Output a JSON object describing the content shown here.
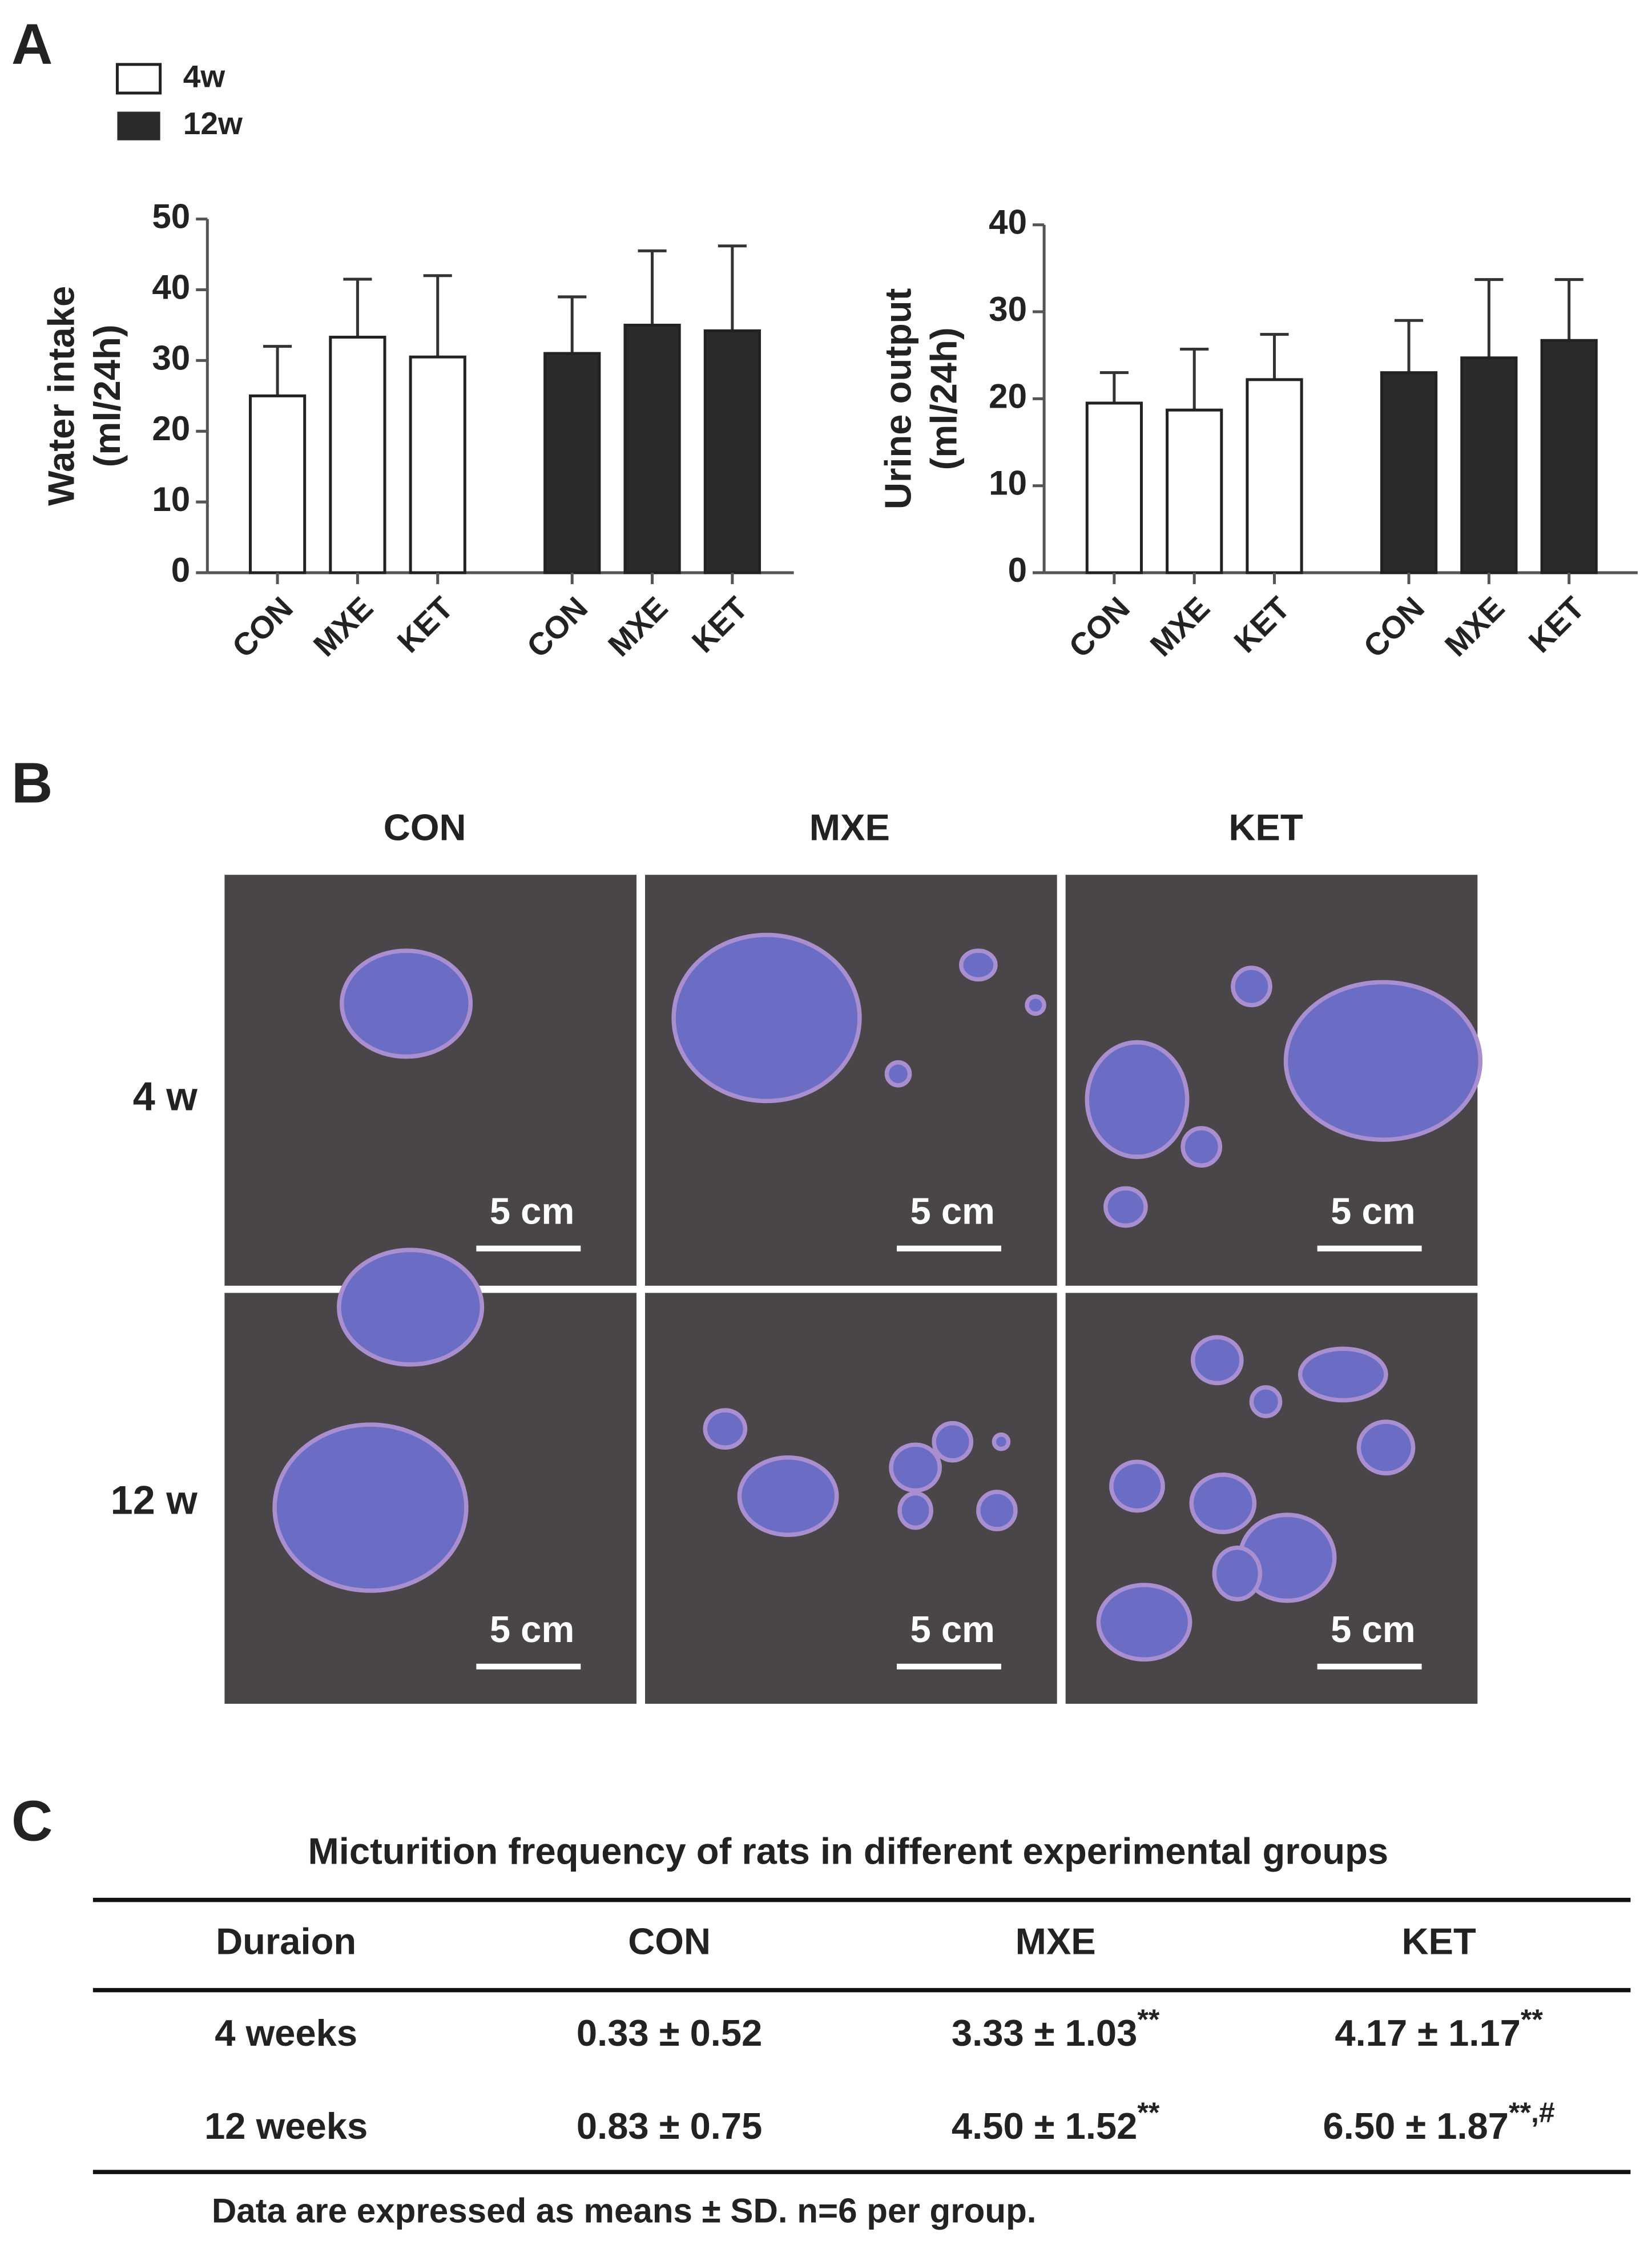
{
  "panels": [
    "A",
    "B",
    "C"
  ],
  "chart_data": [
    {
      "type": "bar",
      "ylabel": [
        "Water intake",
        "(ml/24h)"
      ],
      "categories": [
        "CON",
        "MXE",
        "KET"
      ],
      "ylim": [
        0,
        50
      ],
      "yticks": [
        0,
        10,
        20,
        30,
        40,
        50
      ],
      "series": [
        {
          "name": "4w",
          "color": "#ffffff",
          "values": [
            25,
            33.3,
            30.5
          ],
          "errors": [
            7,
            8.2,
            11.5
          ]
        },
        {
          "name": "12w",
          "color": "#2b2b2b",
          "values": [
            31,
            35,
            34.2
          ],
          "errors": [
            8,
            10.5,
            12
          ]
        }
      ]
    },
    {
      "type": "bar",
      "ylabel": [
        "Urine output",
        "(ml/24h)"
      ],
      "categories": [
        "CON",
        "MXE",
        "KET"
      ],
      "ylim": [
        0,
        40
      ],
      "yticks": [
        0,
        10,
        20,
        30,
        40
      ],
      "series": [
        {
          "name": "4w",
          "color": "#ffffff",
          "values": [
            19.5,
            18.7,
            22.2
          ],
          "errors": [
            3.5,
            7,
            5.2
          ]
        },
        {
          "name": "12w",
          "color": "#2b2b2b",
          "values": [
            23,
            24.7,
            26.7
          ],
          "errors": [
            6,
            9,
            7
          ]
        }
      ]
    }
  ],
  "photos": {
    "columns": [
      "CON",
      "MXE",
      "KET"
    ],
    "rows": [
      "4 w",
      "12 w"
    ],
    "scale_bar": "5 cm"
  },
  "table": {
    "title": "Micturition frequency of rats in different experimental groups",
    "header": [
      "Duraion",
      "CON",
      "MXE",
      "KET"
    ],
    "rows": [
      {
        "cells": [
          {
            "text": "4 weeks"
          },
          {
            "text": "0.33 ± 0.52"
          },
          {
            "text": "3.33 ± 1.03",
            "sup": "**"
          },
          {
            "text": "4.17 ± 1.17",
            "sup": "**"
          }
        ]
      },
      {
        "cells": [
          {
            "text": "12 weeks"
          },
          {
            "text": "0.83 ± 0.75"
          },
          {
            "text": "4.50 ± 1.52",
            "sup": "**"
          },
          {
            "text": "6.50 ± 1.87",
            "sup": "**,#"
          }
        ]
      }
    ],
    "note": "Data are expressed as means ± SD. n=6 per group."
  }
}
